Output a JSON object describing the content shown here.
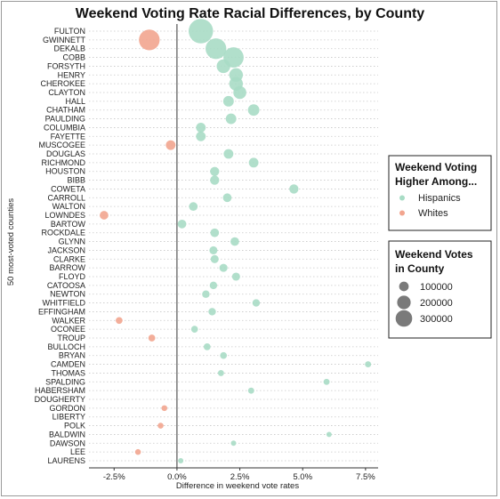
{
  "chart_data": {
    "type": "scatter",
    "title": "Weekend Voting Rate Racial Differences, by County",
    "xlabel": "Difference in weekend vote rates",
    "ylabel": "50 most-voted counties",
    "xlim": [
      -3.5,
      8.0
    ],
    "x_ticks": [
      -2.5,
      0,
      2.5,
      5,
      7.5
    ],
    "x_tick_labels": [
      "-2.5%",
      "0.0%",
      "2.5%",
      "5.0%",
      "7.5%"
    ],
    "grid": "horizontal dotted",
    "legend_placement": "right",
    "colors": {
      "Hispanics": "#a8dcc5",
      "Whites": "#f2a58f"
    },
    "legends": {
      "color": {
        "title": "Weekend Voting Higher Among...",
        "entries": [
          "Hispanics",
          "Whites"
        ]
      },
      "size": {
        "title": "Weekend Votes in County",
        "entries": [
          100000,
          200000,
          300000
        ]
      }
    },
    "points": [
      {
        "county": "FULTON",
        "x": 0.95,
        "votes": 320000,
        "group": "Hispanics"
      },
      {
        "county": "GWINNETT",
        "x": -1.1,
        "votes": 230000,
        "group": "Whites"
      },
      {
        "county": "DEKALB",
        "x": 1.55,
        "votes": 230000,
        "group": "Hispanics"
      },
      {
        "county": "COBB",
        "x": 2.25,
        "votes": 220000,
        "group": "Hispanics"
      },
      {
        "county": "FORSYTH",
        "x": 1.85,
        "votes": 100000,
        "group": "Hispanics"
      },
      {
        "county": "HENRY",
        "x": 2.35,
        "votes": 100000,
        "group": "Hispanics"
      },
      {
        "county": "CHEROKEE",
        "x": 2.35,
        "votes": 100000,
        "group": "Hispanics"
      },
      {
        "county": "CLAYTON",
        "x": 2.5,
        "votes": 90000,
        "group": "Hispanics"
      },
      {
        "county": "HALL",
        "x": 2.05,
        "votes": 60000,
        "group": "Hispanics"
      },
      {
        "county": "CHATHAM",
        "x": 3.05,
        "votes": 70000,
        "group": "Hispanics"
      },
      {
        "county": "PAULDING",
        "x": 2.15,
        "votes": 60000,
        "group": "Hispanics"
      },
      {
        "county": "COLUMBIA",
        "x": 0.95,
        "votes": 50000,
        "group": "Hispanics"
      },
      {
        "county": "FAYETTE",
        "x": 0.95,
        "votes": 50000,
        "group": "Hispanics"
      },
      {
        "county": "MUSCOGEE",
        "x": -0.25,
        "votes": 50000,
        "group": "Whites"
      },
      {
        "county": "DOUGLAS",
        "x": 2.05,
        "votes": 50000,
        "group": "Hispanics"
      },
      {
        "county": "RICHMOND",
        "x": 3.05,
        "votes": 50000,
        "group": "Hispanics"
      },
      {
        "county": "HOUSTON",
        "x": 1.5,
        "votes": 45000,
        "group": "Hispanics"
      },
      {
        "county": "BIBB",
        "x": 1.5,
        "votes": 45000,
        "group": "Hispanics"
      },
      {
        "county": "COWETA",
        "x": 4.65,
        "votes": 45000,
        "group": "Hispanics"
      },
      {
        "county": "CARROLL",
        "x": 2.0,
        "votes": 40000,
        "group": "Hispanics"
      },
      {
        "county": "WALTON",
        "x": 0.65,
        "votes": 40000,
        "group": "Hispanics"
      },
      {
        "county": "LOWNDES",
        "x": -2.9,
        "votes": 40000,
        "group": "Whites"
      },
      {
        "county": "BARTOW",
        "x": 0.2,
        "votes": 40000,
        "group": "Hispanics"
      },
      {
        "county": "ROCKDALE",
        "x": 1.5,
        "votes": 40000,
        "group": "Hispanics"
      },
      {
        "county": "GLYNN",
        "x": 2.3,
        "votes": 40000,
        "group": "Hispanics"
      },
      {
        "county": "JACKSON",
        "x": 1.45,
        "votes": 35000,
        "group": "Hispanics"
      },
      {
        "county": "CLARKE",
        "x": 1.5,
        "votes": 35000,
        "group": "Hispanics"
      },
      {
        "county": "BARROW",
        "x": 1.85,
        "votes": 35000,
        "group": "Hispanics"
      },
      {
        "county": "FLOYD",
        "x": 2.35,
        "votes": 35000,
        "group": "Hispanics"
      },
      {
        "county": "CATOOSA",
        "x": 1.45,
        "votes": 30000,
        "group": "Hispanics"
      },
      {
        "county": "NEWTON",
        "x": 1.15,
        "votes": 30000,
        "group": "Hispanics"
      },
      {
        "county": "WHITFIELD",
        "x": 3.15,
        "votes": 30000,
        "group": "Hispanics"
      },
      {
        "county": "EFFINGHAM",
        "x": 1.4,
        "votes": 30000,
        "group": "Hispanics"
      },
      {
        "county": "WALKER",
        "x": -2.3,
        "votes": 25000,
        "group": "Whites"
      },
      {
        "county": "OCONEE",
        "x": 0.7,
        "votes": 25000,
        "group": "Hispanics"
      },
      {
        "county": "TROUP",
        "x": -1.0,
        "votes": 25000,
        "group": "Whites"
      },
      {
        "county": "BULLOCH",
        "x": 1.2,
        "votes": 25000,
        "group": "Hispanics"
      },
      {
        "county": "BRYAN",
        "x": 1.85,
        "votes": 25000,
        "group": "Hispanics"
      },
      {
        "county": "CAMDEN",
        "x": 7.6,
        "votes": 20000,
        "group": "Hispanics"
      },
      {
        "county": "THOMAS",
        "x": 1.75,
        "votes": 20000,
        "group": "Hispanics"
      },
      {
        "county": "SPALDING",
        "x": 5.95,
        "votes": 20000,
        "group": "Hispanics"
      },
      {
        "county": "HABERSHAM",
        "x": 2.95,
        "votes": 20000,
        "group": "Hispanics"
      },
      {
        "county": "DOUGHERTY",
        "x": null,
        "votes": null,
        "group": null
      },
      {
        "county": "GORDON",
        "x": -0.5,
        "votes": 18000,
        "group": "Whites"
      },
      {
        "county": "LIBERTY",
        "x": null,
        "votes": null,
        "group": null
      },
      {
        "county": "POLK",
        "x": -0.65,
        "votes": 18000,
        "group": "Whites"
      },
      {
        "county": "BALDWIN",
        "x": 6.05,
        "votes": 15000,
        "group": "Hispanics"
      },
      {
        "county": "DAWSON",
        "x": 2.25,
        "votes": 15000,
        "group": "Hispanics"
      },
      {
        "county": "LEE",
        "x": -1.55,
        "votes": 18000,
        "group": "Whites"
      },
      {
        "county": "LAURENS",
        "x": 0.15,
        "votes": 15000,
        "group": "Hispanics"
      }
    ]
  }
}
